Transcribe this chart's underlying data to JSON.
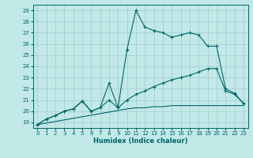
{
  "xlabel": "Humidex (Indice chaleur)",
  "bg_color": "#c2e8e8",
  "grid_color": "#a0cccc",
  "line_color": "#006666",
  "spine_color": "#006666",
  "xlim": [
    -0.5,
    23.5
  ],
  "ylim": [
    18.5,
    29.5
  ],
  "xticks": [
    0,
    1,
    2,
    3,
    4,
    5,
    6,
    7,
    8,
    9,
    10,
    11,
    12,
    13,
    14,
    15,
    16,
    17,
    18,
    19,
    20,
    21,
    22,
    23
  ],
  "yticks": [
    19,
    20,
    21,
    22,
    23,
    24,
    25,
    26,
    27,
    28,
    29
  ],
  "line1_x": [
    0,
    1,
    2,
    3,
    4,
    5,
    6,
    7,
    8,
    9,
    10,
    11,
    12,
    13,
    14,
    15,
    16,
    17,
    18,
    19,
    20,
    21,
    22,
    23
  ],
  "line1_y": [
    18.8,
    19.3,
    19.6,
    20.0,
    20.2,
    20.9,
    20.0,
    20.3,
    22.5,
    20.3,
    25.5,
    29.0,
    27.5,
    27.2,
    27.0,
    26.6,
    26.8,
    27.0,
    26.8,
    25.8,
    25.8,
    22.0,
    21.6,
    20.7
  ],
  "line2_x": [
    0,
    1,
    2,
    3,
    4,
    5,
    6,
    7,
    8,
    9,
    10,
    11,
    12,
    13,
    14,
    15,
    16,
    17,
    18,
    19,
    20,
    21,
    22,
    23
  ],
  "line2_y": [
    18.8,
    19.3,
    19.6,
    20.0,
    20.2,
    20.9,
    20.0,
    20.3,
    21.0,
    20.3,
    21.0,
    21.5,
    21.8,
    22.2,
    22.5,
    22.8,
    23.0,
    23.2,
    23.5,
    23.8,
    23.8,
    21.8,
    21.5,
    20.7
  ],
  "line3_x": [
    0,
    10,
    11,
    12,
    13,
    14,
    15,
    16,
    17,
    18,
    19,
    20,
    21,
    22,
    23
  ],
  "line3_y": [
    18.8,
    20.2,
    20.3,
    20.3,
    20.4,
    20.4,
    20.5,
    20.5,
    20.5,
    20.5,
    20.5,
    20.5,
    20.5,
    20.5,
    20.5
  ]
}
